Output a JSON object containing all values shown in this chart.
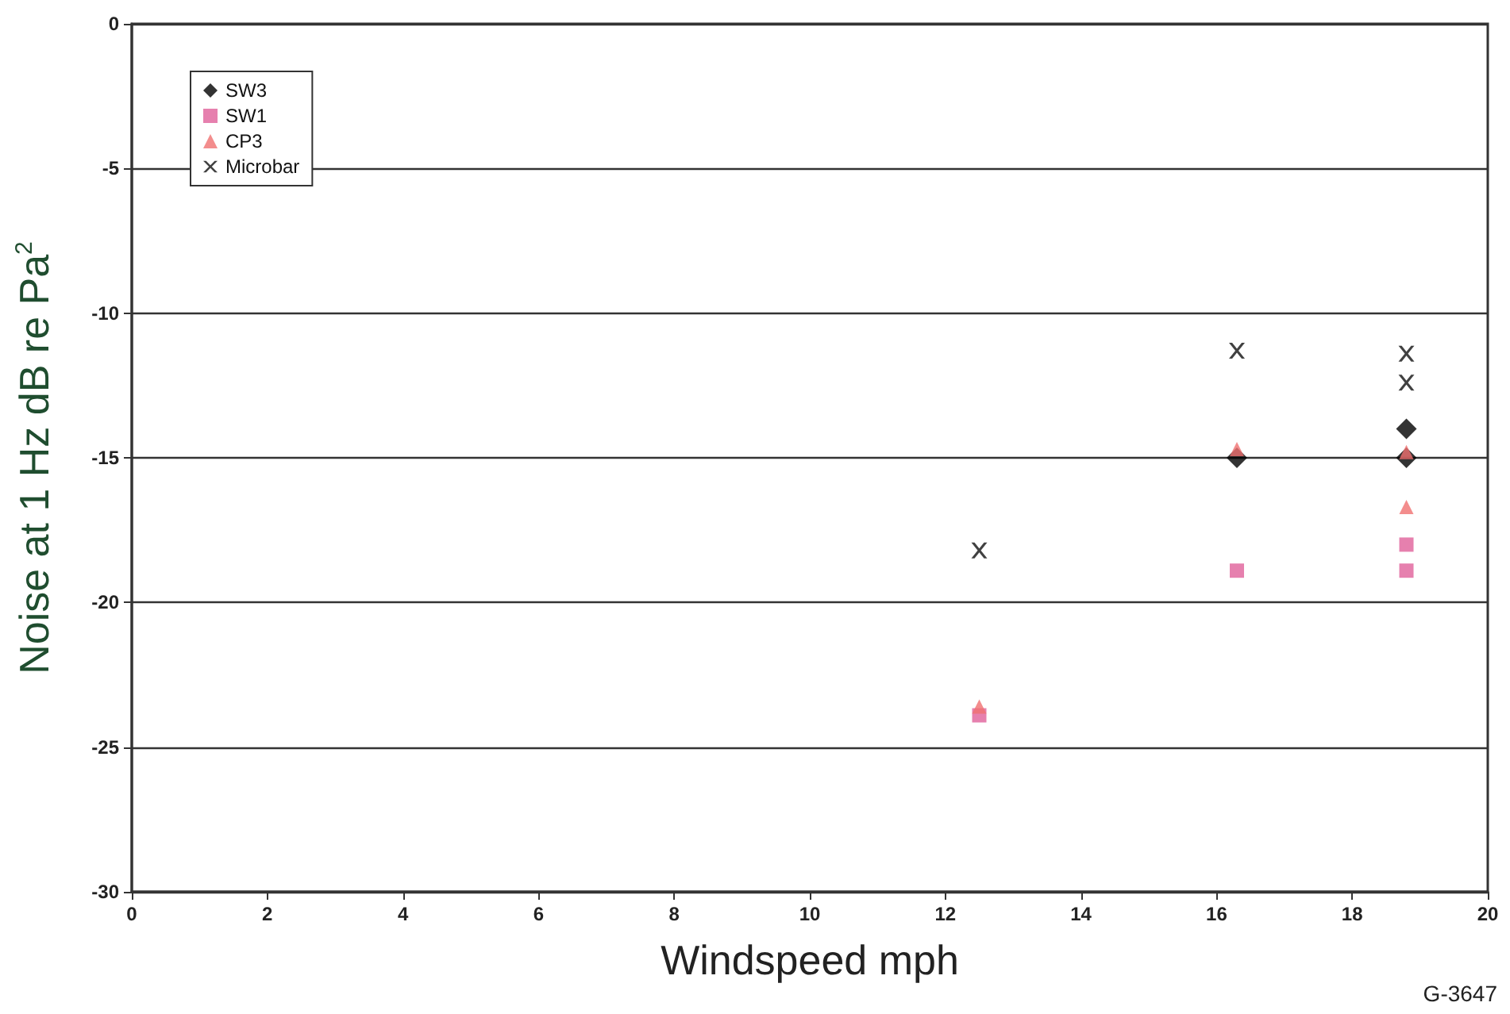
{
  "chart_data": {
    "type": "scatter",
    "xlabel": "Windspeed mph",
    "ylabel": "Noise at 1 Hz dB re Pa$^{2}$",
    "xlim": [
      0,
      20
    ],
    "xticks": [
      0,
      2,
      4,
      6,
      8,
      10,
      12,
      14,
      16,
      18,
      20
    ],
    "ylim": [
      -30,
      0
    ],
    "yticks": [
      -30,
      -25,
      -20,
      -15,
      -10,
      -5,
      0
    ],
    "grid": "y",
    "legend": "top left",
    "annotations": [
      "G-3647"
    ],
    "series": [
      {
        "name": "SW3",
        "color": "#000000",
        "marker": "diamond",
        "x": [
          16.3,
          18.8,
          18.8
        ],
        "values": [
          -15,
          -14,
          -15
        ]
      },
      {
        "name": "SW1",
        "color": "#e0609a",
        "marker": "square",
        "x": [
          12.5,
          16.3,
          18.8,
          18.8
        ],
        "values": [
          -23.9,
          -18.9,
          -18,
          -18.9
        ]
      },
      {
        "name": "CP3",
        "color": "#f07070",
        "marker": "triangle",
        "x": [
          12.5,
          16.3,
          18.8,
          18.8
        ],
        "values": [
          -23.6,
          -14.7,
          -14.8,
          -16.7
        ]
      },
      {
        "name": "Microbar",
        "color": "#111111",
        "marker": "cross",
        "x": [
          12.5,
          16.3,
          18.8,
          18.8
        ],
        "values": [
          -18.2,
          -11.3,
          -11.4,
          -12.4
        ]
      }
    ]
  }
}
